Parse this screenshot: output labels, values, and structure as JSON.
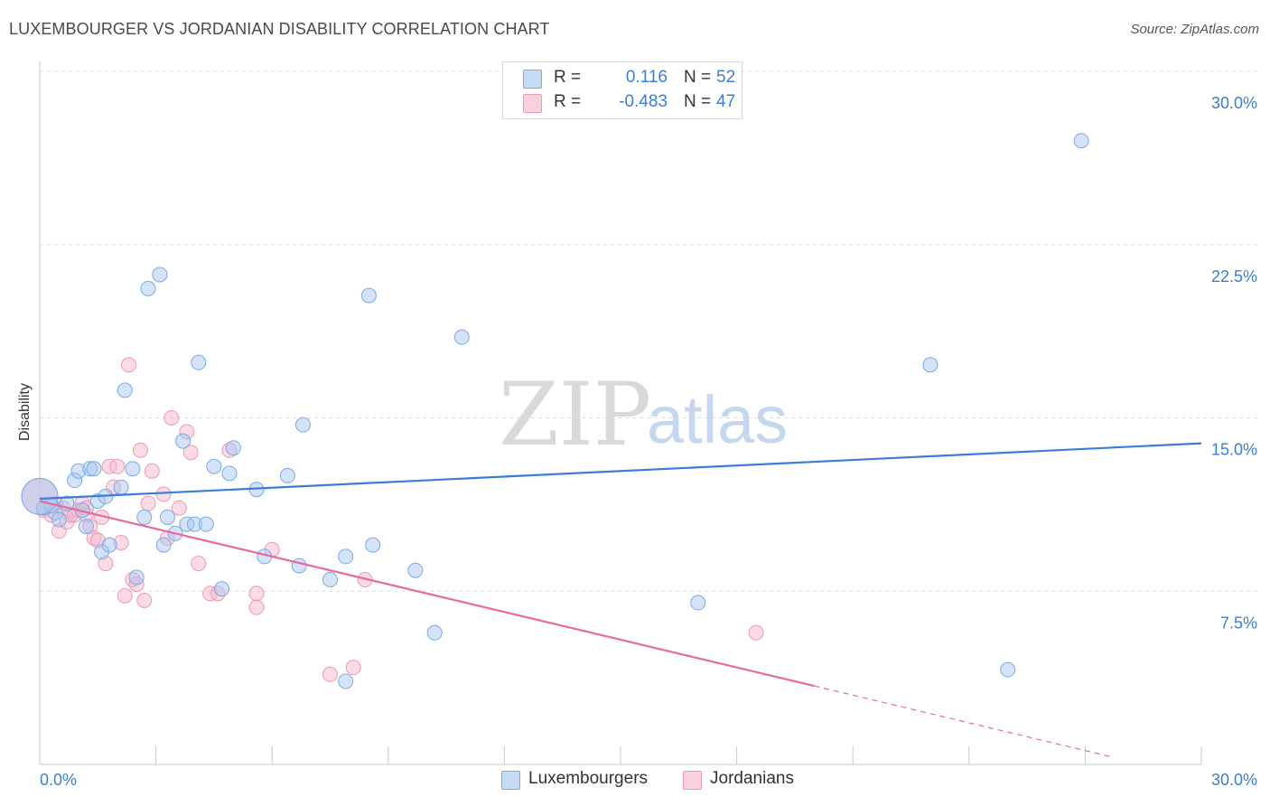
{
  "header": {
    "title": "LUXEMBOURGER VS JORDANIAN DISABILITY CORRELATION CHART",
    "source": "Source: ZipAtlas.com"
  },
  "watermark": {
    "zip": "ZIP",
    "atlas": "atlas"
  },
  "legend": {
    "rows": [
      {
        "r_label": "R =",
        "r_value": "0.116",
        "n_label": "N =",
        "n_value": "52",
        "color": "#a9c8f0"
      },
      {
        "r_label": "R =",
        "r_value": "-0.483",
        "n_label": "N =",
        "n_value": "47",
        "color": "#f5b8cd"
      }
    ]
  },
  "bottom_legend": [
    {
      "label": "Luxembourgers",
      "color": "#a9c8f0"
    },
    {
      "label": "Jordanians",
      "color": "#f5b8cd"
    }
  ],
  "chart_data": {
    "type": "scatter",
    "title": "LUXEMBOURGER VS JORDANIAN DISABILITY CORRELATION CHART",
    "xlabel": "",
    "ylabel": "Disability",
    "xlim": [
      0,
      30
    ],
    "ylim": [
      0,
      30
    ],
    "x_ticks": [
      "0.0%",
      "30.0%"
    ],
    "y_ticks": [
      {
        "value": 7.5,
        "label": "7.5%"
      },
      {
        "value": 15.0,
        "label": "15.0%"
      },
      {
        "value": 22.5,
        "label": "22.5%"
      },
      {
        "value": 30.0,
        "label": "30.0%"
      }
    ],
    "grid": "horizontal dashed",
    "legend_placement": "top-center",
    "series": [
      {
        "name": "Luxembourgers",
        "color": "#3b7dd8",
        "fill": "#a9c8f0",
        "trend": {
          "x": [
            0,
            30
          ],
          "y": [
            11.5,
            13.9
          ]
        },
        "points": [
          [
            0.1,
            11.1
          ],
          [
            0.4,
            10.9
          ],
          [
            0.5,
            10.6
          ],
          [
            0.7,
            11.3
          ],
          [
            0.9,
            12.3
          ],
          [
            1.0,
            12.7
          ],
          [
            1.2,
            10.3
          ],
          [
            1.3,
            12.8
          ],
          [
            1.4,
            12.8
          ],
          [
            1.5,
            11.4
          ],
          [
            1.6,
            9.2
          ],
          [
            1.7,
            11.6
          ],
          [
            1.8,
            9.5
          ],
          [
            2.1,
            12.0
          ],
          [
            2.2,
            16.2
          ],
          [
            2.4,
            12.8
          ],
          [
            2.5,
            8.1
          ],
          [
            2.7,
            10.7
          ],
          [
            2.8,
            20.6
          ],
          [
            3.1,
            21.2
          ],
          [
            3.2,
            9.5
          ],
          [
            3.3,
            10.7
          ],
          [
            3.5,
            10.0
          ],
          [
            3.7,
            14.0
          ],
          [
            3.8,
            10.4
          ],
          [
            4.0,
            10.4
          ],
          [
            4.1,
            17.4
          ],
          [
            4.3,
            10.4
          ],
          [
            4.5,
            12.9
          ],
          [
            4.7,
            7.6
          ],
          [
            4.9,
            12.6
          ],
          [
            5.0,
            13.7
          ],
          [
            5.6,
            11.9
          ],
          [
            5.8,
            9.0
          ],
          [
            6.4,
            12.5
          ],
          [
            6.7,
            8.6
          ],
          [
            6.8,
            14.7
          ],
          [
            7.5,
            8.0
          ],
          [
            7.9,
            3.6
          ],
          [
            7.9,
            9.0
          ],
          [
            8.5,
            20.3
          ],
          [
            8.6,
            9.5
          ],
          [
            9.7,
            8.4
          ],
          [
            10.2,
            5.7
          ],
          [
            10.9,
            18.5
          ],
          [
            17.0,
            7.0
          ],
          [
            23.0,
            17.3
          ],
          [
            26.9,
            27.0
          ],
          [
            25.0,
            4.1
          ],
          [
            1.1,
            11.0
          ],
          [
            0.3,
            11.2
          ],
          [
            0.0,
            11.6
          ]
        ]
      },
      {
        "name": "Jordanians",
        "color": "#e8699a",
        "fill": "#f5b8cd",
        "trend": {
          "x": [
            0,
            20
          ],
          "y": [
            11.4,
            3.4
          ]
        },
        "trend_dashed": {
          "x": [
            20,
            30
          ],
          "y": [
            3.4,
            -0.6
          ]
        },
        "points": [
          [
            0.1,
            11.0
          ],
          [
            0.3,
            10.8
          ],
          [
            0.5,
            10.1
          ],
          [
            0.6,
            11.1
          ],
          [
            0.7,
            10.5
          ],
          [
            0.8,
            10.8
          ],
          [
            0.9,
            10.8
          ],
          [
            1.0,
            11.0
          ],
          [
            1.1,
            11.3
          ],
          [
            1.2,
            10.8
          ],
          [
            1.3,
            10.3
          ],
          [
            1.4,
            9.8
          ],
          [
            1.5,
            9.7
          ],
          [
            1.6,
            10.7
          ],
          [
            1.7,
            8.7
          ],
          [
            1.8,
            12.9
          ],
          [
            1.9,
            12.0
          ],
          [
            2.0,
            12.9
          ],
          [
            2.1,
            9.6
          ],
          [
            2.2,
            7.3
          ],
          [
            2.3,
            17.3
          ],
          [
            2.4,
            8.0
          ],
          [
            2.5,
            7.8
          ],
          [
            2.6,
            13.6
          ],
          [
            2.7,
            7.1
          ],
          [
            2.8,
            11.3
          ],
          [
            2.9,
            12.7
          ],
          [
            3.2,
            11.7
          ],
          [
            3.3,
            9.8
          ],
          [
            3.4,
            15.0
          ],
          [
            3.6,
            11.1
          ],
          [
            3.8,
            14.4
          ],
          [
            3.9,
            13.5
          ],
          [
            4.1,
            8.7
          ],
          [
            4.4,
            7.4
          ],
          [
            4.6,
            7.4
          ],
          [
            4.9,
            13.6
          ],
          [
            5.6,
            7.4
          ],
          [
            5.6,
            6.8
          ],
          [
            6.0,
            9.3
          ],
          [
            7.5,
            3.9
          ],
          [
            8.1,
            4.2
          ],
          [
            8.4,
            8.0
          ],
          [
            18.5,
            5.7
          ],
          [
            1.2,
            11.1
          ],
          [
            0.4,
            11.3
          ],
          [
            0.0,
            11.6
          ]
        ]
      }
    ]
  }
}
